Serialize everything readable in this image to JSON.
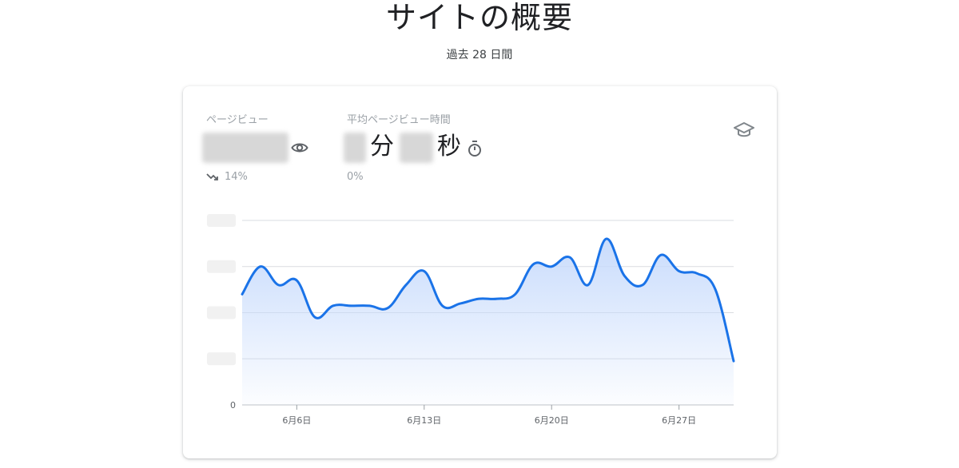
{
  "page": {
    "title": "サイトの概要",
    "subtitle": "過去 28 日間"
  },
  "metrics": {
    "pageviews": {
      "label": "ページビュー",
      "change": "14%",
      "trend_icon": "trending-down-icon",
      "icon": "eye-icon"
    },
    "avg_time": {
      "label": "平均ページビュー時間",
      "minutes_unit": "分",
      "seconds_unit": "秒",
      "change": "0%",
      "icon": "stopwatch-icon"
    }
  },
  "card_icon": "graduation-cap-icon",
  "colors": {
    "line": "#1a73e8",
    "area_top": "#c6dafc",
    "grid": "#dadce0",
    "text_secondary": "#9aa0a6"
  },
  "chart_data": {
    "type": "area",
    "x_tick_labels": [
      "6月6日",
      "6月13日",
      "6月20日",
      "6月27日"
    ],
    "x_ticks_day": [
      6,
      13,
      20,
      27
    ],
    "y_tick_label": "0",
    "y_gridlines": 4,
    "y_range_relative": [
      0,
      4
    ],
    "x_range_day": [
      3,
      30
    ],
    "x_day": [
      3,
      4,
      5,
      6,
      7,
      8,
      9,
      10,
      11,
      12,
      13,
      14,
      15,
      16,
      17,
      18,
      19,
      20,
      21,
      22,
      23,
      24,
      25,
      26,
      27,
      28,
      29,
      30
    ],
    "values": [
      2.4,
      3.0,
      2.6,
      2.7,
      1.9,
      2.15,
      2.15,
      2.15,
      2.1,
      2.6,
      2.9,
      2.15,
      2.2,
      2.3,
      2.3,
      2.4,
      3.05,
      3.0,
      3.2,
      2.6,
      3.6,
      2.8,
      2.6,
      3.25,
      2.9,
      2.85,
      2.5,
      0.95
    ]
  }
}
